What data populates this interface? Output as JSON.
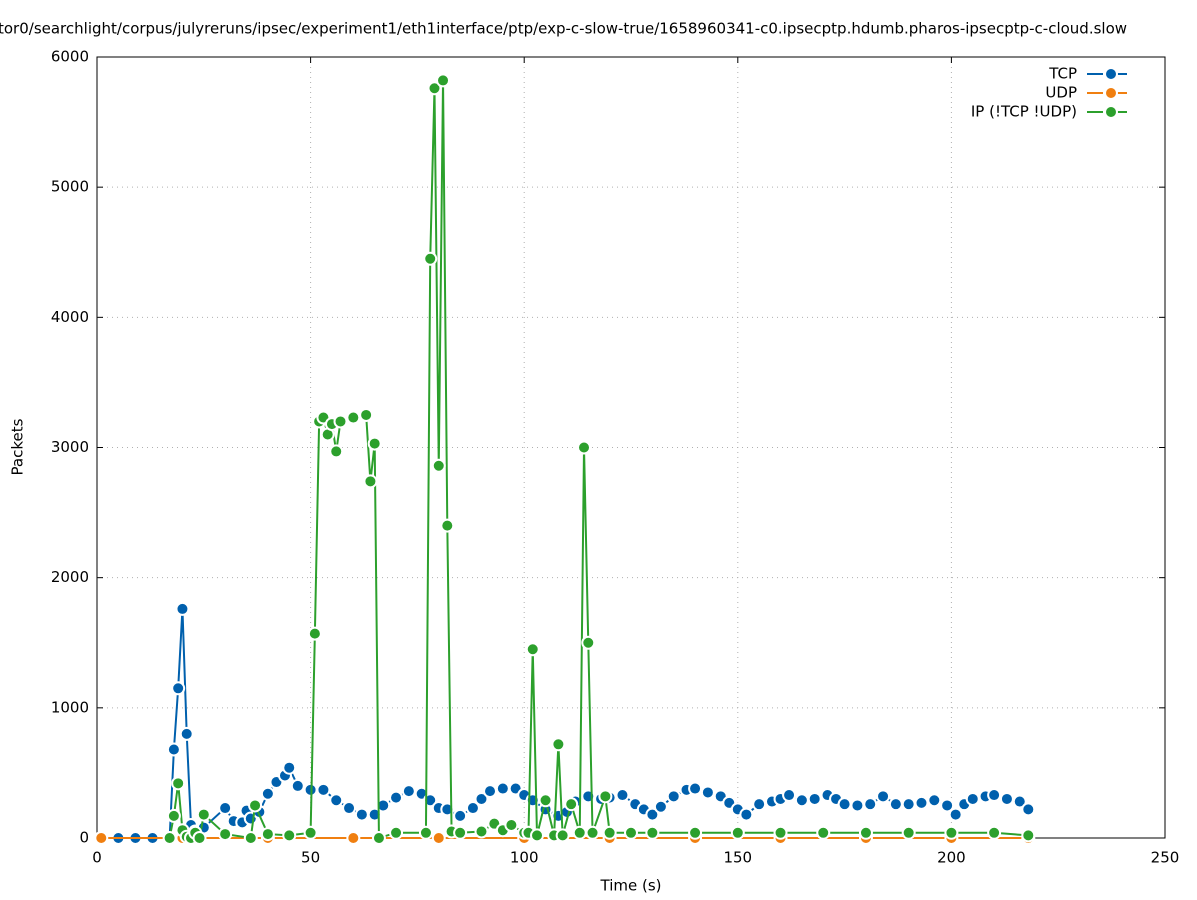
{
  "chart_data": {
    "type": "line",
    "title": "tor0/searchlight/corpus/julyreruns/ipsec/experiment1/eth1interface/ptp/exp-c-slow-true/1658960341-c0.ipsecptp.hdumb.pharos-ipsecptp-c-cloud.slow",
    "x_label": "Time (s)",
    "y_label": "Packets",
    "xlim": [
      0,
      250
    ],
    "ylim": [
      0,
      6000
    ],
    "xticks": [
      0,
      50,
      100,
      150,
      200,
      250
    ],
    "yticks": [
      0,
      1000,
      2000,
      3000,
      4000,
      5000,
      6000
    ],
    "grid": true,
    "legend": "top right",
    "series": [
      {
        "name": "TCP",
        "color": "#0060ad",
        "x": [
          1,
          5,
          9,
          13,
          17,
          18,
          19,
          20,
          21,
          22,
          23,
          25,
          30,
          32,
          34,
          35,
          36,
          38,
          40,
          42,
          44,
          45,
          47,
          50,
          53,
          56,
          59,
          62,
          65,
          67,
          70,
          73,
          76,
          78,
          80,
          82,
          85,
          88,
          90,
          92,
          95,
          98,
          100,
          102,
          105,
          108,
          110,
          112,
          115,
          118,
          120,
          123,
          126,
          128,
          130,
          132,
          135,
          138,
          140,
          143,
          146,
          148,
          150,
          152,
          155,
          158,
          160,
          162,
          165,
          168,
          171,
          173,
          175,
          178,
          181,
          184,
          187,
          190,
          193,
          196,
          199,
          201,
          203,
          205,
          208,
          210,
          213,
          216,
          218
        ],
        "values": [
          0,
          0,
          0,
          0,
          0,
          680,
          1150,
          1760,
          800,
          100,
          50,
          80,
          230,
          130,
          120,
          210,
          150,
          200,
          340,
          430,
          480,
          540,
          400,
          370,
          370,
          290,
          230,
          180,
          180,
          250,
          310,
          360,
          340,
          290,
          230,
          220,
          170,
          230,
          300,
          360,
          380,
          380,
          330,
          290,
          220,
          170,
          200,
          280,
          320,
          300,
          310,
          330,
          260,
          220,
          180,
          240,
          320,
          370,
          380,
          350,
          320,
          270,
          220,
          180,
          260,
          280,
          300,
          330,
          290,
          300,
          330,
          300,
          260,
          250,
          260,
          320,
          260,
          260,
          270,
          290,
          250,
          180,
          260,
          300,
          320,
          330,
          300,
          280,
          220
        ]
      },
      {
        "name": "UDP",
        "color": "#f07f10",
        "x": [
          1,
          20,
          40,
          60,
          80,
          100,
          120,
          140,
          160,
          180,
          200,
          218
        ],
        "values": [
          0,
          0,
          0,
          0,
          0,
          0,
          0,
          0,
          0,
          0,
          0,
          0
        ]
      },
      {
        "name": "IP (!TCP  !UDP)",
        "color": "#2ca02c",
        "x": [
          17,
          18,
          19,
          20,
          21,
          22,
          23,
          24,
          25,
          30,
          36,
          37,
          40,
          45,
          50,
          51,
          52,
          53,
          54,
          55,
          56,
          57,
          60,
          63,
          64,
          65,
          66,
          70,
          77,
          78,
          79,
          80,
          81,
          82,
          83,
          85,
          90,
          93,
          95,
          97,
          100,
          101,
          102,
          103,
          105,
          107,
          108,
          109,
          111,
          113,
          114,
          115,
          116,
          119,
          120,
          125,
          130,
          140,
          150,
          160,
          170,
          180,
          190,
          200,
          210,
          218
        ],
        "values": [
          0,
          170,
          420,
          60,
          10,
          0,
          40,
          0,
          180,
          30,
          0,
          250,
          30,
          20,
          40,
          1570,
          3200,
          3230,
          3100,
          3180,
          2970,
          3200,
          3230,
          3250,
          2740,
          3030,
          0,
          40,
          40,
          4450,
          5760,
          2860,
          5820,
          2400,
          50,
          40,
          50,
          110,
          60,
          100,
          40,
          40,
          1450,
          20,
          290,
          20,
          720,
          20,
          260,
          40,
          3000,
          1500,
          40,
          320,
          40,
          40,
          40,
          40,
          40,
          40,
          40,
          40,
          40,
          40,
          40,
          20
        ]
      }
    ]
  }
}
